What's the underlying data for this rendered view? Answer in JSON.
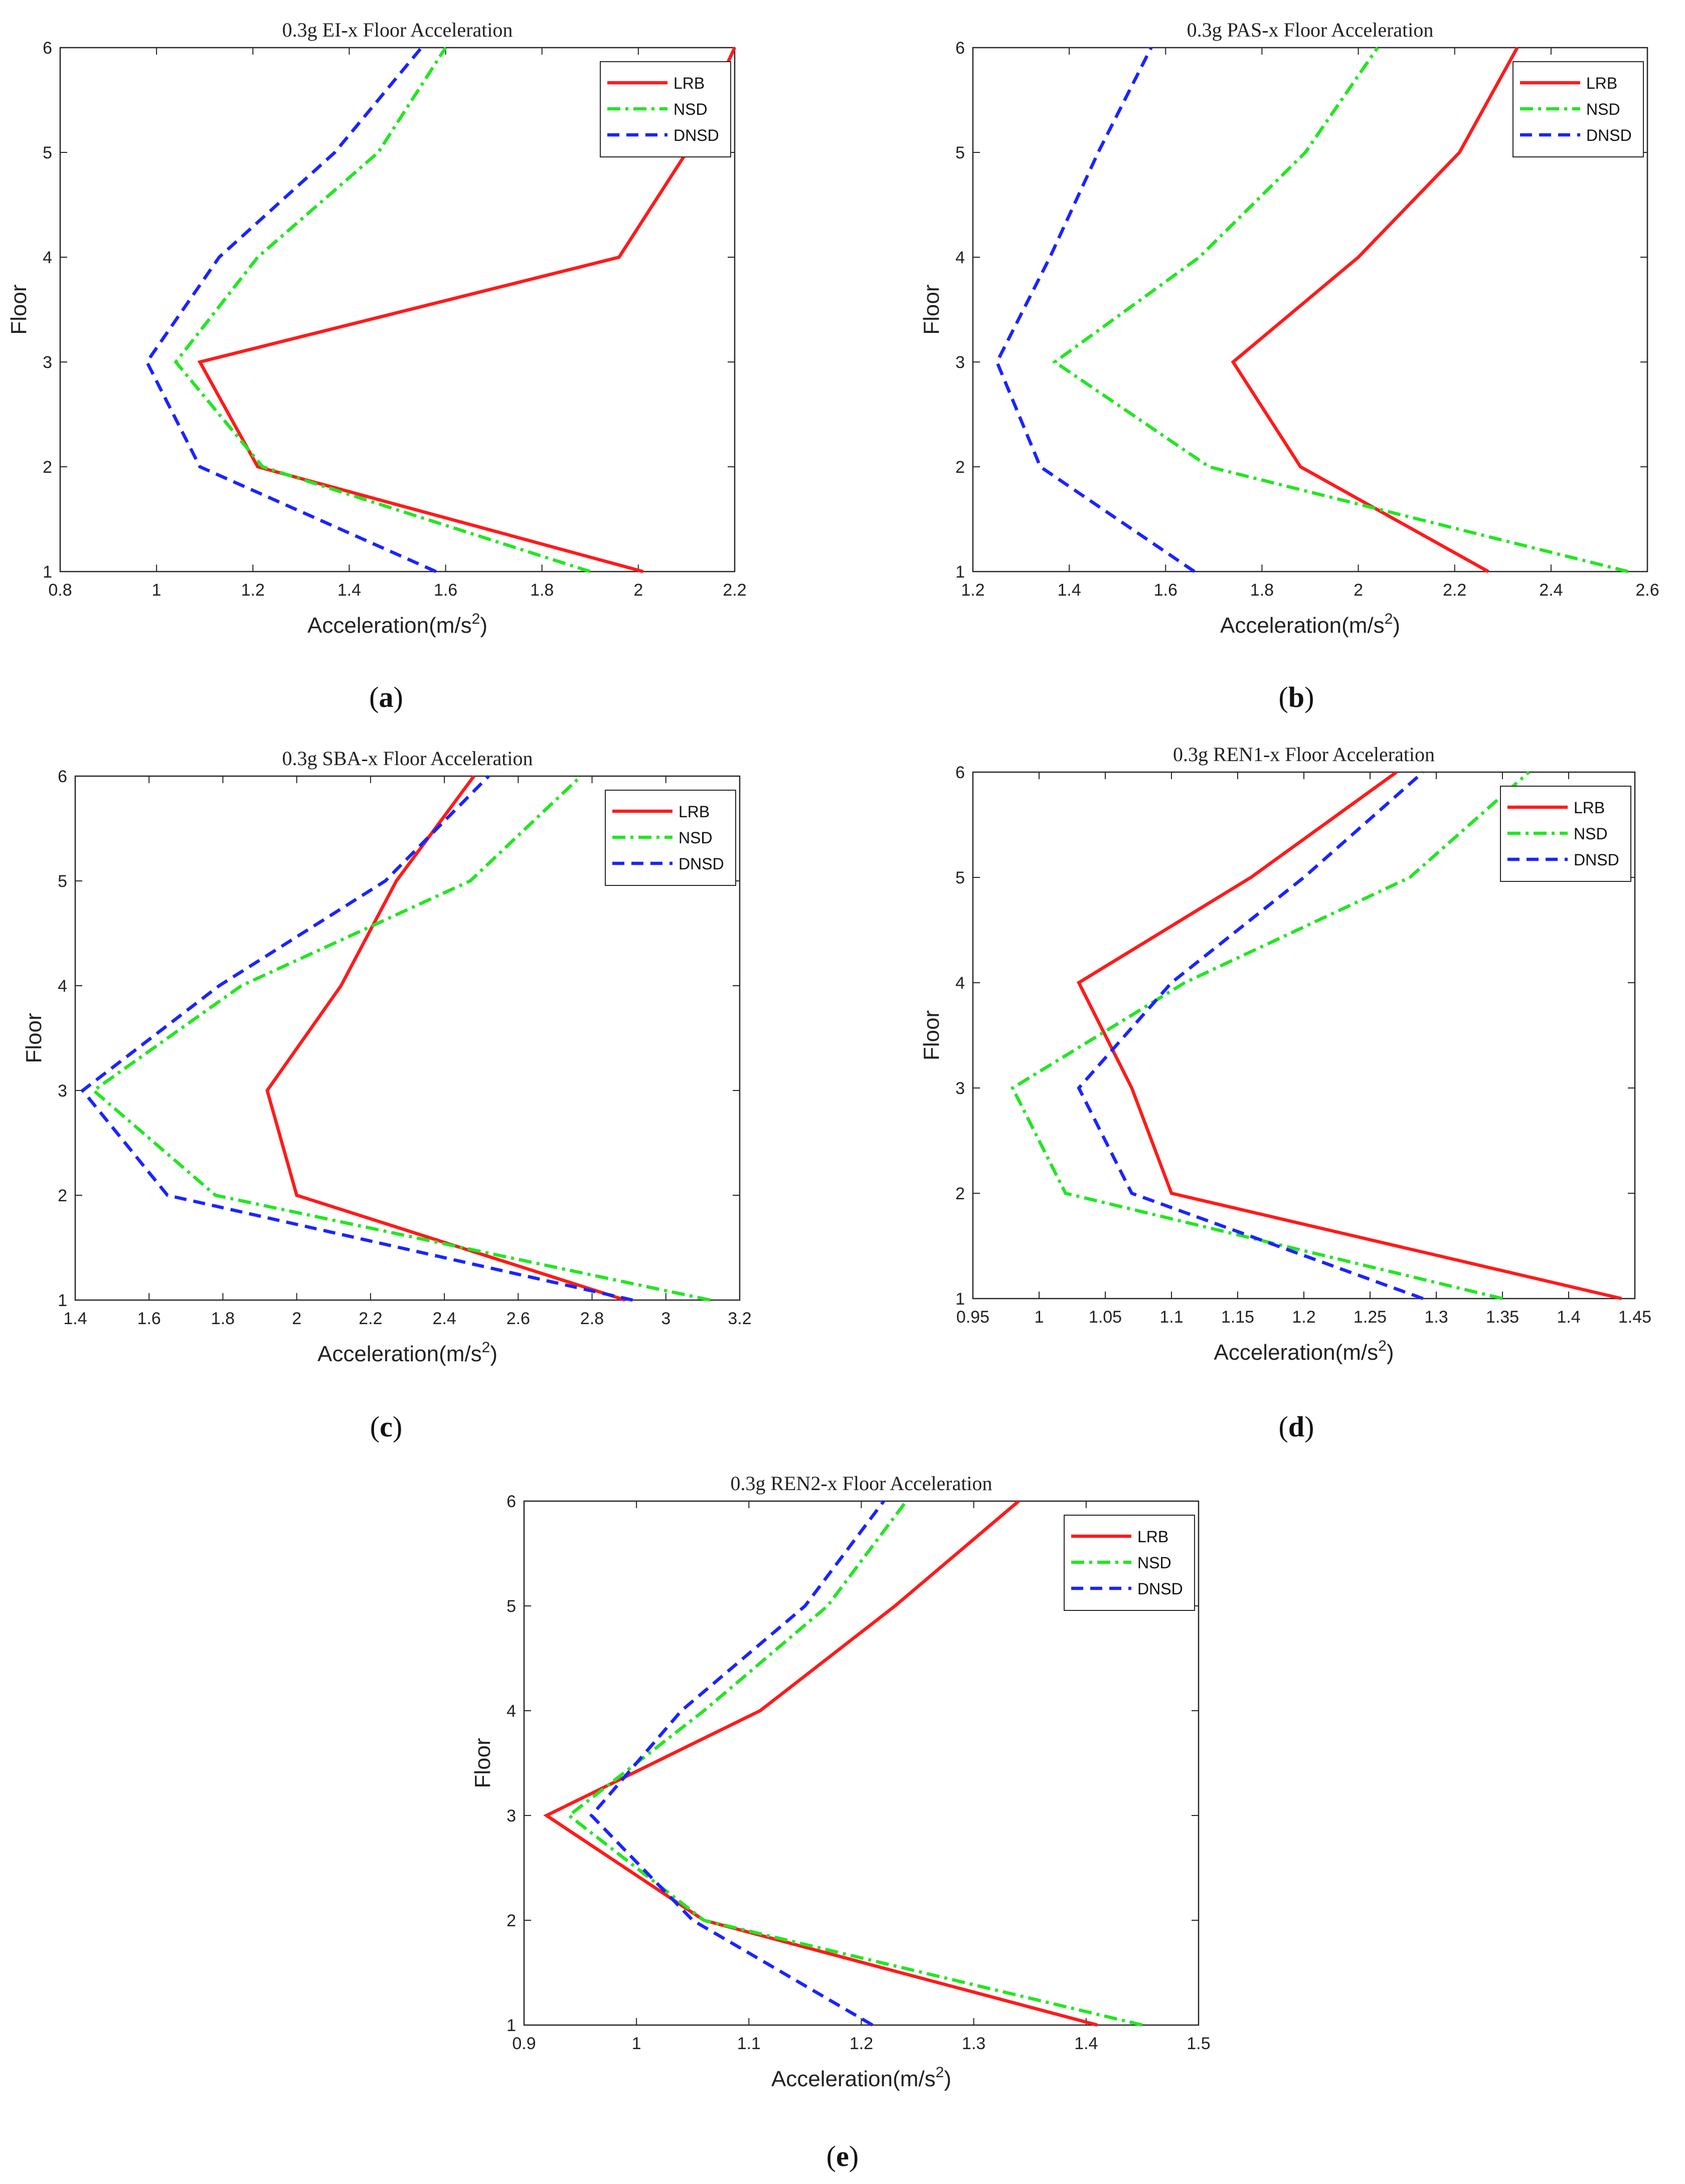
{
  "figure": {
    "series_colors": {
      "LRB": "#ff1a1a",
      "NSD": "#22e622",
      "DNSD": "#1a24ff"
    }
  },
  "chart_data": [
    {
      "type": "line",
      "panel": "(a)",
      "panel_letter": "a",
      "title": "0.3g EI-x Floor Acceleration",
      "xlabel": "Acceleration(m/s",
      "xlabel_sup": "2",
      "xlabel_suffix": ")",
      "ylabel": "Floor",
      "xlim": [
        0.8,
        2.2
      ],
      "ylim": [
        1,
        6
      ],
      "xticks": [
        "0.8",
        "1",
        "1.2",
        "1.4",
        "1.6",
        "1.8",
        "2",
        "2.2"
      ],
      "yticks": [
        "1",
        "2",
        "3",
        "4",
        "5",
        "6"
      ],
      "legend_position": "top-right",
      "y": [
        1,
        2,
        3,
        4,
        5,
        6
      ],
      "series": [
        {
          "name": "LRB",
          "values": [
            2.01,
            1.21,
            1.09,
            1.96,
            2.1,
            2.2
          ]
        },
        {
          "name": "NSD",
          "values": [
            1.9,
            1.22,
            1.04,
            1.21,
            1.46,
            1.6
          ]
        },
        {
          "name": "DNSD",
          "values": [
            1.58,
            1.09,
            0.98,
            1.13,
            1.37,
            1.55
          ]
        }
      ]
    },
    {
      "type": "line",
      "panel": "(b)",
      "panel_letter": "b",
      "title": "0.3g PAS-x Floor Acceleration",
      "xlabel": "Acceleration(m/s",
      "xlabel_sup": "2",
      "xlabel_suffix": ")",
      "ylabel": "Floor",
      "xlim": [
        1.2,
        2.6
      ],
      "ylim": [
        1,
        6
      ],
      "xticks": [
        "1.2",
        "1.4",
        "1.6",
        "1.8",
        "2",
        "2.2",
        "2.4",
        "2.6"
      ],
      "yticks": [
        "1",
        "2",
        "3",
        "4",
        "5",
        "6"
      ],
      "legend_position": "top-right",
      "y": [
        1,
        2,
        3,
        4,
        5,
        6
      ],
      "series": [
        {
          "name": "LRB",
          "values": [
            2.27,
            1.88,
            1.74,
            2.0,
            2.21,
            2.33
          ]
        },
        {
          "name": "NSD",
          "values": [
            2.56,
            1.69,
            1.37,
            1.67,
            1.89,
            2.04
          ]
        },
        {
          "name": "DNSD",
          "values": [
            1.66,
            1.34,
            1.25,
            1.36,
            1.46,
            1.57
          ]
        }
      ]
    },
    {
      "type": "line",
      "panel": "(c)",
      "panel_letter": "c",
      "title": "0.3g SBA-x Floor Acceleration",
      "xlabel": "Acceleration(m/s",
      "xlabel_sup": "2",
      "xlabel_suffix": ")",
      "ylabel": "Floor",
      "xlim": [
        1.4,
        3.2
      ],
      "ylim": [
        1,
        6
      ],
      "xticks": [
        "1.4",
        "1.6",
        "1.8",
        "2",
        "2.2",
        "2.4",
        "2.6",
        "2.8",
        "3",
        "3.2"
      ],
      "yticks": [
        "1",
        "2",
        "3",
        "4",
        "5",
        "6"
      ],
      "legend_position": "top-right",
      "y": [
        1,
        2,
        3,
        4,
        5,
        6
      ],
      "series": [
        {
          "name": "LRB",
          "values": [
            2.89,
            2.0,
            1.92,
            2.12,
            2.27,
            2.48
          ]
        },
        {
          "name": "NSD",
          "values": [
            3.12,
            1.78,
            1.45,
            1.85,
            2.47,
            2.77
          ]
        },
        {
          "name": "DNSD",
          "values": [
            2.91,
            1.65,
            1.42,
            1.79,
            2.24,
            2.52
          ]
        }
      ]
    },
    {
      "type": "line",
      "panel": "(d)",
      "panel_letter": "d",
      "title": "0.3g REN1-x Floor Acceleration",
      "xlabel": "Acceleration(m/s",
      "xlabel_sup": "2",
      "xlabel_suffix": ")",
      "ylabel": "Floor",
      "xlim": [
        0.95,
        1.45
      ],
      "ylim": [
        1,
        6
      ],
      "xticks": [
        "0.95",
        "1",
        "1.05",
        "1.1",
        "1.15",
        "1.2",
        "1.25",
        "1.3",
        "1.35",
        "1.4",
        "1.45"
      ],
      "yticks": [
        "1",
        "2",
        "3",
        "4",
        "5",
        "6"
      ],
      "legend_position": "top-right",
      "y": [
        1,
        2,
        3,
        4,
        5,
        6
      ],
      "series": [
        {
          "name": "LRB",
          "values": [
            1.44,
            1.1,
            1.07,
            1.03,
            1.16,
            1.27
          ]
        },
        {
          "name": "NSD",
          "values": [
            1.35,
            1.02,
            0.98,
            1.11,
            1.28,
            1.37
          ]
        },
        {
          "name": "DNSD",
          "values": [
            1.29,
            1.07,
            1.03,
            1.1,
            1.2,
            1.29
          ]
        }
      ]
    },
    {
      "type": "line",
      "panel": "(e)",
      "panel_letter": "e",
      "title": "0.3g REN2-x Floor Acceleration",
      "xlabel": "Acceleration(m/s",
      "xlabel_sup": "2",
      "xlabel_suffix": ")",
      "ylabel": "Floor",
      "xlim": [
        0.9,
        1.5
      ],
      "ylim": [
        1,
        6
      ],
      "xticks": [
        "0.9",
        "1",
        "1.1",
        "1.2",
        "1.3",
        "1.4",
        "1.5"
      ],
      "yticks": [
        "1",
        "2",
        "3",
        "4",
        "5",
        "6"
      ],
      "legend_position": "top-right",
      "y": [
        1,
        2,
        3,
        4,
        5,
        6
      ],
      "series": [
        {
          "name": "LRB",
          "values": [
            1.41,
            1.06,
            0.92,
            1.11,
            1.23,
            1.34
          ]
        },
        {
          "name": "NSD",
          "values": [
            1.45,
            1.06,
            0.94,
            1.06,
            1.17,
            1.24
          ]
        },
        {
          "name": "DNSD",
          "values": [
            1.21,
            1.05,
            0.96,
            1.04,
            1.15,
            1.22
          ]
        }
      ]
    }
  ]
}
